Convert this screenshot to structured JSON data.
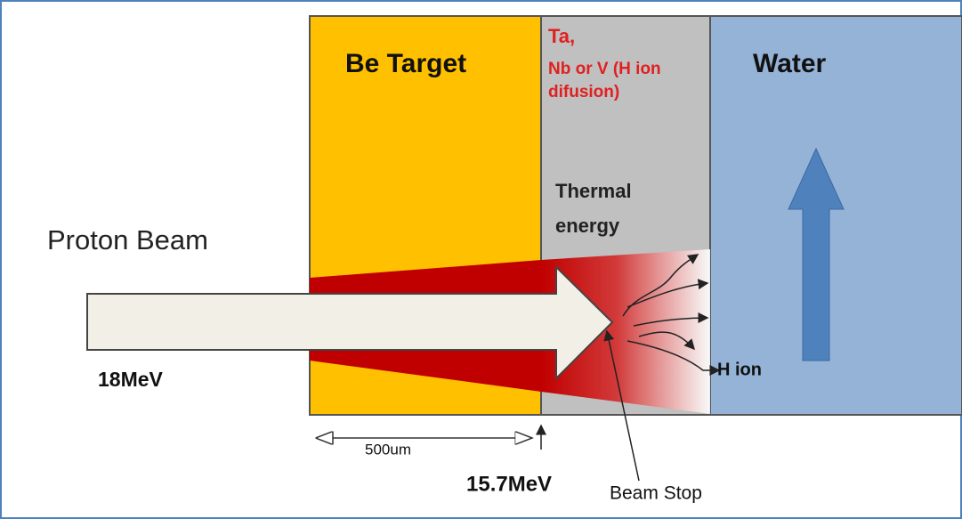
{
  "regions": {
    "target": "Be Target",
    "barrier_line1": "Ta,",
    "barrier_line2": "Nb or V (H ion",
    "barrier_line3": "difusion)",
    "water": "Water",
    "thermal_line1": "Thermal",
    "thermal_line2": "energy"
  },
  "beam": {
    "label": "Proton Beam",
    "energy_in": "18MeV",
    "energy_out": "15.7MeV",
    "thickness": "500um",
    "stop": "Beam Stop",
    "ion": "H ion"
  }
}
